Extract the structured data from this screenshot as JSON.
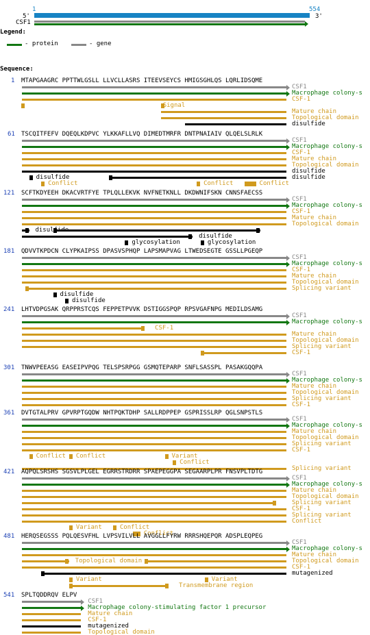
{
  "colors": {
    "protein": "#127712",
    "gene": "#888888",
    "overview": "#1783c4",
    "feature": "#d09a1e",
    "bond": "#000000",
    "number": "#1a3fb4"
  },
  "overview": {
    "start_label": "1",
    "end_label": "554",
    "five_prime": "5'",
    "three_prime": "3'",
    "gene_label": "CSF1"
  },
  "legend": {
    "title": "Legend:",
    "protein_label": "- protein",
    "gene_label": "- gene"
  },
  "sequence_title": "Sequence:",
  "seq_length": 554,
  "blocks": [
    {
      "start": 1,
      "seq": "MTAPGAAGRC PPTTWLGSLL LLVCLLASRS ITEEVSEYCS HMIGSGHLQS LQRLIDSQME",
      "tracks": [
        {
          "type": "gene",
          "from": 1,
          "to": 60,
          "arrow": true,
          "label": "CSF1",
          "label_pos": "right"
        },
        {
          "type": "protein",
          "from": 1,
          "to": 60,
          "arrow": true,
          "label": "Macrophage colony-s",
          "label_pos": "right"
        },
        {
          "type": "feature",
          "from": 1,
          "to": 60,
          "label": "CSF-1",
          "label_pos": "right"
        },
        {
          "type": "feature",
          "from": 1,
          "to": 1,
          "marks": [
            1,
            33
          ],
          "label": "Signal",
          "label_pos": "after",
          "after_col": 33
        },
        {
          "type": "feature",
          "from": 33,
          "to": 60,
          "label": "Mature chain",
          "label_pos": "right"
        },
        {
          "type": "feature",
          "from": 33,
          "to": 60,
          "label": "Topological domain",
          "label_pos": "right"
        },
        {
          "type": "bond",
          "from": 39,
          "to": 60,
          "label": "disulfide",
          "label_pos": "right"
        }
      ]
    },
    {
      "start": 61,
      "seq": "TSCQITFEFV DQEQLKDPVC YLKKAFLLVQ DIMEDTMRFR DNTPNAIAIV QLQELSLRLK",
      "tracks": [
        {
          "type": "gene",
          "from": 61,
          "to": 120,
          "arrow": true,
          "label": "CSF1",
          "label_pos": "right"
        },
        {
          "type": "protein",
          "from": 61,
          "to": 120,
          "arrow": true,
          "label": "Macrophage colony-s",
          "label_pos": "right"
        },
        {
          "type": "feature",
          "from": 61,
          "to": 120,
          "label": "CSF-1",
          "label_pos": "right"
        },
        {
          "type": "feature",
          "from": 61,
          "to": 120,
          "label": "Mature chain",
          "label_pos": "right"
        },
        {
          "type": "feature",
          "from": 61,
          "to": 120,
          "label": "Topological domain",
          "label_pos": "right"
        },
        {
          "type": "bond",
          "from": 61,
          "to": 120,
          "label": "disulfide",
          "label_pos": "right"
        },
        {
          "type": "bondsplit",
          "marks": [
            63
          ],
          "seg_from": 81,
          "seg_to": 120,
          "label": "disulfide",
          "label_after": 63,
          "label2": "disulfide"
        },
        {
          "type": "conflicts",
          "items": [
            {
              "col": 66,
              "label": "Conflict"
            },
            {
              "col": 101,
              "label": "Conflict"
            },
            {
              "col": 112,
              "to": 114,
              "label": "Conflict"
            }
          ]
        }
      ]
    },
    {
      "start": 121,
      "seq": "SCFTKDYEEH DKACVRTFYE TPLQLLEKVK NVFNETKNLL DKDWNIFSKN CNNSFAECSS",
      "tracks": [
        {
          "type": "gene",
          "from": 121,
          "to": 180,
          "arrow": true,
          "label": "CSF1",
          "label_pos": "right"
        },
        {
          "type": "protein",
          "from": 121,
          "to": 180,
          "arrow": true,
          "label": "Macrophage colony-s",
          "label_pos": "right"
        },
        {
          "type": "feature",
          "from": 121,
          "to": 180,
          "label": "CSF-1",
          "label_pos": "right"
        },
        {
          "type": "feature",
          "from": 121,
          "to": 180,
          "label": "Mature chain",
          "label_pos": "right"
        },
        {
          "type": "feature",
          "from": 121,
          "to": 180,
          "label": "Topological domain",
          "label_pos": "right"
        },
        {
          "type": "bondcustom",
          "row": 5,
          "segments": [
            [
              121,
              122
            ],
            [
              129,
              175
            ]
          ],
          "marks": [
            122,
            129,
            175
          ],
          "labels": [
            {
              "col": 124,
              "text": "disulfide"
            }
          ]
        },
        {
          "type": "bondcustom",
          "row": 6,
          "segments": [
            [
              121,
              160
            ]
          ],
          "marks": [
            160
          ],
          "labels": [
            {
              "col": 161,
              "text": "disulfide"
            }
          ]
        },
        {
          "type": "glyco",
          "row": 7,
          "items": [
            {
              "col": 145,
              "label": "glycosylation"
            },
            {
              "col": 162,
              "label": "glycosylation"
            }
          ]
        }
      ]
    },
    {
      "start": 181,
      "seq": "QDVVTKPDCN CLYPKAIPSS DPASVSPHQP LAPSMAPVAG LTWEDSEGTE GSSLLPGEQP",
      "tracks": [
        {
          "type": "gene",
          "from": 181,
          "to": 240,
          "arrow": true,
          "label": "CSF1",
          "label_pos": "right"
        },
        {
          "type": "protein",
          "from": 181,
          "to": 240,
          "arrow": true,
          "label": "Macrophage colony-s",
          "label_pos": "right"
        },
        {
          "type": "feature",
          "from": 181,
          "to": 240,
          "label": "CSF-1",
          "label_pos": "right"
        },
        {
          "type": "feature",
          "from": 181,
          "to": 240,
          "label": "Mature chain",
          "label_pos": "right"
        },
        {
          "type": "feature",
          "from": 181,
          "to": 240,
          "label": "Topological domain",
          "label_pos": "right"
        },
        {
          "type": "feature",
          "from": 182,
          "to": 240,
          "marks": [
            182
          ],
          "label": "Splicing variant",
          "label_pos": "right"
        },
        {
          "type": "glyco",
          "row": 6,
          "items": [
            {
              "col": 189,
              "label": "disulfide"
            }
          ]
        },
        {
          "type": "glyco",
          "row": 7,
          "items": [
            {
              "col": 191,
              "label": "disulfide"
            }
          ]
        }
      ]
    },
    {
      "start": 241,
      "seq": "LHTVDPGSAK QRPPRSTCQS FEPPETPVVK DSTIGGSPQP RPSVGAFNPG MEDILDSAMG",
      "tracks": [
        {
          "type": "gene",
          "from": 241,
          "to": 300,
          "arrow": true,
          "label": "CSF1",
          "label_pos": "right"
        },
        {
          "type": "protein",
          "from": 241,
          "to": 300,
          "arrow": true,
          "label": "Macrophage colony-s",
          "label_pos": "right"
        },
        {
          "type": "feature",
          "from": 241,
          "to": 269,
          "marks": [
            269
          ],
          "label": "CSF-1",
          "label_pos": "after",
          "after_col": 271
        },
        {
          "type": "feature",
          "from": 241,
          "to": 300,
          "label": "Mature chain",
          "label_pos": "right"
        },
        {
          "type": "feature",
          "from": 241,
          "to": 300,
          "label": "Topological domain",
          "label_pos": "right"
        },
        {
          "type": "feature",
          "from": 241,
          "to": 300,
          "label": "Splicing variant",
          "label_pos": "right"
        },
        {
          "type": "feature",
          "from": 282,
          "to": 300,
          "marks": [
            282
          ],
          "label": "CSF-1",
          "label_pos": "right"
        }
      ]
    },
    {
      "start": 301,
      "seq": "TNWVPEEASG EASEIPVPQG TELSPSRPGG GSMQTEPARP SNFLSASSPL PASAKGQQPA",
      "tracks": [
        {
          "type": "gene",
          "from": 301,
          "to": 360,
          "arrow": true,
          "label": "CSF1",
          "label_pos": "right"
        },
        {
          "type": "protein",
          "from": 301,
          "to": 360,
          "arrow": true,
          "label": "Macrophage colony-s",
          "label_pos": "right"
        },
        {
          "type": "feature",
          "from": 301,
          "to": 360,
          "label": "Mature chain",
          "label_pos": "right"
        },
        {
          "type": "feature",
          "from": 301,
          "to": 360,
          "label": "Topological domain",
          "label_pos": "right"
        },
        {
          "type": "feature",
          "from": 301,
          "to": 360,
          "label": "Splicing variant",
          "label_pos": "right"
        },
        {
          "type": "feature",
          "from": 301,
          "to": 360,
          "label": "CSF-1",
          "label_pos": "right"
        }
      ]
    },
    {
      "start": 361,
      "seq": "DVTGTALPRV GPVRPTGQDW NHTPQKTDHP SALLRDPPEP GSPRISSLRP QGLSNPSTLS",
      "tracks": [
        {
          "type": "gene",
          "from": 361,
          "to": 420,
          "arrow": true,
          "label": "CSF1",
          "label_pos": "right"
        },
        {
          "type": "protein",
          "from": 361,
          "to": 420,
          "arrow": true,
          "label": "Macrophage colony-s",
          "label_pos": "right"
        },
        {
          "type": "feature",
          "from": 361,
          "to": 420,
          "label": "Mature chain",
          "label_pos": "right"
        },
        {
          "type": "feature",
          "from": 361,
          "to": 420,
          "label": "Topological domain",
          "label_pos": "right"
        },
        {
          "type": "feature",
          "from": 361,
          "to": 420,
          "label": "Splicing variant",
          "label_pos": "right"
        },
        {
          "type": "feature",
          "from": 361,
          "to": 420,
          "label": "CSF-1",
          "label_pos": "right"
        },
        {
          "type": "conflicts",
          "items": [
            {
              "col": 363,
              "label": "Conflict"
            },
            {
              "col": 372,
              "label": "Conflict"
            },
            {
              "col": 394,
              "label": "Variant"
            }
          ]
        },
        {
          "type": "conflicts",
          "items": [
            {
              "col": 396,
              "label": "Conflict"
            }
          ]
        },
        {
          "type": "feature",
          "from": 361,
          "to": 420,
          "label": "Splicing variant",
          "label_pos": "right"
        }
      ]
    },
    {
      "start": 421,
      "seq": "AQPQLSRSHS SGSVLPLGEL EGRRSTRDRR SPAEPEGGPA SEGAARPLPR FNSVPLTDTG",
      "tracks": [
        {
          "type": "gene",
          "from": 421,
          "to": 480,
          "arrow": true,
          "label": "CSF1",
          "label_pos": "right"
        },
        {
          "type": "protein",
          "from": 421,
          "to": 480,
          "arrow": true,
          "label": "Macrophage colony-s",
          "label_pos": "right"
        },
        {
          "type": "feature",
          "from": 421,
          "to": 480,
          "label": "Mature chain",
          "label_pos": "right"
        },
        {
          "type": "feature",
          "from": 421,
          "to": 480,
          "label": "Topological domain",
          "label_pos": "right"
        },
        {
          "type": "feature",
          "from": 421,
          "to": 479,
          "marks": [
            479
          ],
          "label": "Splicing variant",
          "label_pos": "right"
        },
        {
          "type": "feature",
          "from": 421,
          "to": 480,
          "label": "CSF-1",
          "label_pos": "right"
        },
        {
          "type": "feature",
          "from": 421,
          "to": 480,
          "label": "Splicing variant",
          "label_pos": "right"
        },
        {
          "type": "feature",
          "from": 421,
          "to": 480,
          "label": "Conflict",
          "label_pos": "right"
        },
        {
          "type": "conflicts",
          "items": [
            {
              "col": 432,
              "label": "Variant"
            },
            {
              "col": 442,
              "label": "Conflict"
            }
          ]
        },
        {
          "type": "conflicts",
          "items": [
            {
              "col": 447,
              "to": 448,
              "label": "Conflict"
            }
          ]
        }
      ]
    },
    {
      "start": 481,
      "seq": "HERQSEGSSS PQLQESVFHL LVPSVILVLL AVGGLLFYRW RRRSHQEPQR ADSPLEQPEG",
      "tracks": [
        {
          "type": "gene",
          "from": 481,
          "to": 540,
          "arrow": true,
          "label": "CSF1",
          "label_pos": "right"
        },
        {
          "type": "protein",
          "from": 481,
          "to": 540,
          "arrow": true,
          "label": "Macrophage colony-s",
          "label_pos": "right"
        },
        {
          "type": "feature",
          "from": 481,
          "to": 540,
          "label": "Mature chain",
          "label_pos": "right"
        },
        {
          "type": "featuresplit",
          "segments": [
            [
              481,
              491
            ],
            [
              510,
              540
            ]
          ],
          "marks": [
            491,
            510
          ],
          "label": "Topological domain",
          "label_col": 493,
          "label2": "Topological domain"
        },
        {
          "type": "feature",
          "from": 481,
          "to": 540,
          "label": "CSF-1",
          "label_pos": "right"
        },
        {
          "type": "bond",
          "from": 486,
          "to": 540,
          "marks": [
            486
          ],
          "label": "mutagenized",
          "label_pos": "right"
        },
        {
          "type": "conflicts",
          "items": [
            {
              "col": 492,
              "label": "Variant"
            },
            {
              "col": 523,
              "label": "Variant"
            }
          ]
        },
        {
          "type": "featuresplit",
          "segments": [
            [
              492,
              514
            ]
          ],
          "marks": [
            492,
            514
          ],
          "label": "Transmembrane region",
          "label_col": 517
        }
      ]
    },
    {
      "start": 541,
      "seq": "SPLTQDDRQV ELPV",
      "tracks": [
        {
          "type": "gene",
          "from": 541,
          "to": 554,
          "arrow": true,
          "label": "CSF1",
          "label_pos": "right"
        },
        {
          "type": "protein",
          "from": 541,
          "to": 554,
          "arrow": true,
          "label": "Macrophage colony-stimulating factor 1 precursor",
          "label_pos": "right"
        },
        {
          "type": "feature",
          "from": 541,
          "to": 554,
          "label": "Mature chain",
          "label_pos": "right"
        },
        {
          "type": "feature",
          "from": 541,
          "to": 554,
          "label": "CSF-1",
          "label_pos": "right"
        },
        {
          "type": "bond",
          "from": 541,
          "to": 554,
          "label": "mutagenized",
          "label_pos": "right"
        },
        {
          "type": "feature",
          "from": 541,
          "to": 554,
          "label": "Topological domain",
          "label_pos": "right"
        }
      ]
    }
  ]
}
